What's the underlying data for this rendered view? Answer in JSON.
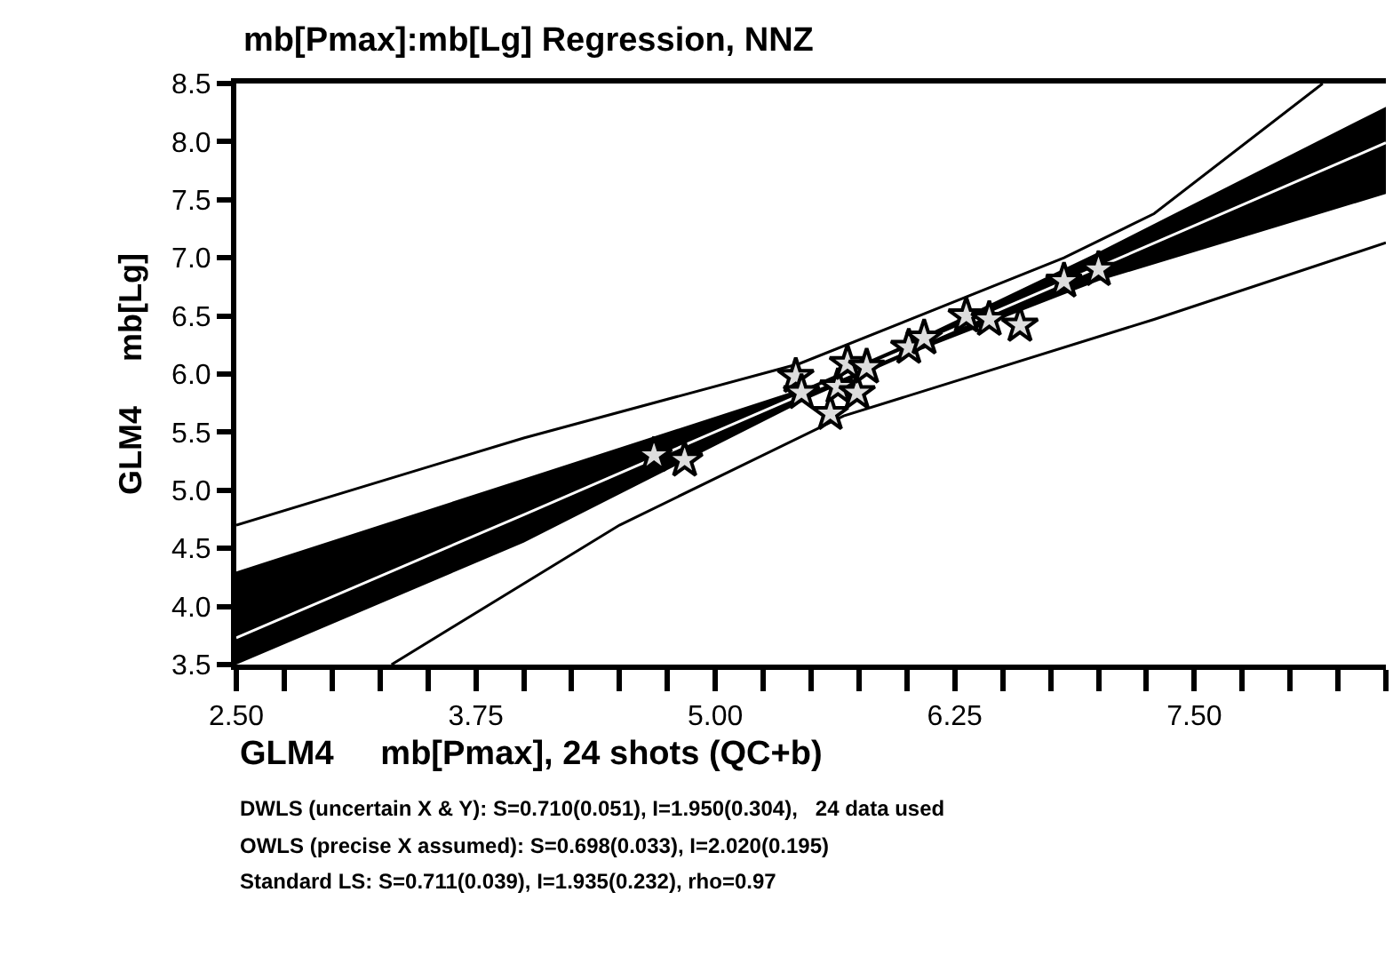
{
  "chart_data": {
    "type": "scatter",
    "title": "mb[Pmax]:mb[Lg] Regression, NNZ",
    "xlabel": "GLM4     mb[Pmax], 24 shots (QC+b)",
    "ylabel": "GLM4     mb[Lg]",
    "xlim": [
      2.5,
      8.5
    ],
    "ylim": [
      3.5,
      8.5
    ],
    "xticks": [
      {
        "value": 2.5,
        "label": "2.50"
      },
      {
        "value": 2.75,
        "label": null
      },
      {
        "value": 3.0,
        "label": null
      },
      {
        "value": 3.25,
        "label": null
      },
      {
        "value": 3.5,
        "label": null
      },
      {
        "value": 3.75,
        "label": "3.75"
      },
      {
        "value": 4.0,
        "label": null
      },
      {
        "value": 4.25,
        "label": null
      },
      {
        "value": 4.5,
        "label": null
      },
      {
        "value": 4.75,
        "label": null
      },
      {
        "value": 5.0,
        "label": "5.00"
      },
      {
        "value": 5.25,
        "label": null
      },
      {
        "value": 5.5,
        "label": null
      },
      {
        "value": 5.75,
        "label": null
      },
      {
        "value": 6.0,
        "label": null
      },
      {
        "value": 6.25,
        "label": "6.25"
      },
      {
        "value": 6.5,
        "label": null
      },
      {
        "value": 6.75,
        "label": null
      },
      {
        "value": 7.0,
        "label": null
      },
      {
        "value": 7.25,
        "label": null
      },
      {
        "value": 7.5,
        "label": "7.50"
      },
      {
        "value": 7.75,
        "label": null
      },
      {
        "value": 8.0,
        "label": null
      },
      {
        "value": 8.25,
        "label": null
      },
      {
        "value": 8.5,
        "label": null
      }
    ],
    "yticks": [
      3.5,
      {
        "value": 4,
        "label": "4.0"
      },
      4.5,
      {
        "value": 5,
        "label": "5.0"
      },
      5.5,
      {
        "value": 6,
        "label": "6.0"
      },
      6.5,
      {
        "value": 7,
        "label": "7.0"
      },
      7.5,
      {
        "value": 8,
        "label": "8.0"
      },
      8.5
    ],
    "marker": "star",
    "series": [
      {
        "type": "line",
        "marker": "none",
        "color": "#ffffff",
        "x": [
          2.5,
          4,
          5.5,
          6,
          7,
          8.5
        ],
        "values": [
          3.73,
          4.79,
          5.86,
          6.21,
          6.92,
          7.99
        ],
        "lower": [
          3.5,
          4.55,
          5.8,
          6.16,
          6.8,
          7.55
        ],
        "upper": [
          4.3,
          5.1,
          5.9,
          6.26,
          7.05,
          8.3
        ]
      },
      {
        "type": "line",
        "marker": "none",
        "color": "#000000",
        "x": [
          2.5,
          4,
          5.44,
          6.82,
          7.29,
          8.17
        ],
        "values": [
          4.7,
          5.45,
          6.09,
          7.0,
          7.38,
          8.5
        ]
      },
      {
        "type": "line",
        "marker": "none",
        "color": "#000000",
        "x": [
          3.31,
          4.5,
          5.67,
          7.29,
          8.5
        ],
        "values": [
          3.5,
          4.7,
          5.64,
          6.47,
          7.13
        ]
      },
      {
        "color": "#dddddd",
        "x": [
          4.68,
          4.84,
          5.42,
          5.45,
          5.6,
          5.64,
          5.69,
          5.74,
          5.79,
          6.01,
          6.09,
          6.31,
          6.43,
          6.55,
          6.59,
          6.82,
          7.0
        ],
        "values": [
          5.3,
          5.26,
          5.98,
          5.84,
          5.66,
          5.89,
          6.09,
          5.84,
          6.06,
          6.23,
          6.31,
          6.5,
          6.47,
          null,
          6.42,
          6.8,
          6.9
        ]
      }
    ],
    "annotations": [
      "DWLS (uncertain X & Y): S=0.710(0.051), I=1.950(0.304),   24 data used",
      "OWLS (precise X assumed): S=0.698(0.033), I=2.020(0.195)",
      "Standard LS: S=0.711(0.039), I=1.935(0.232), rho=0.97"
    ]
  }
}
